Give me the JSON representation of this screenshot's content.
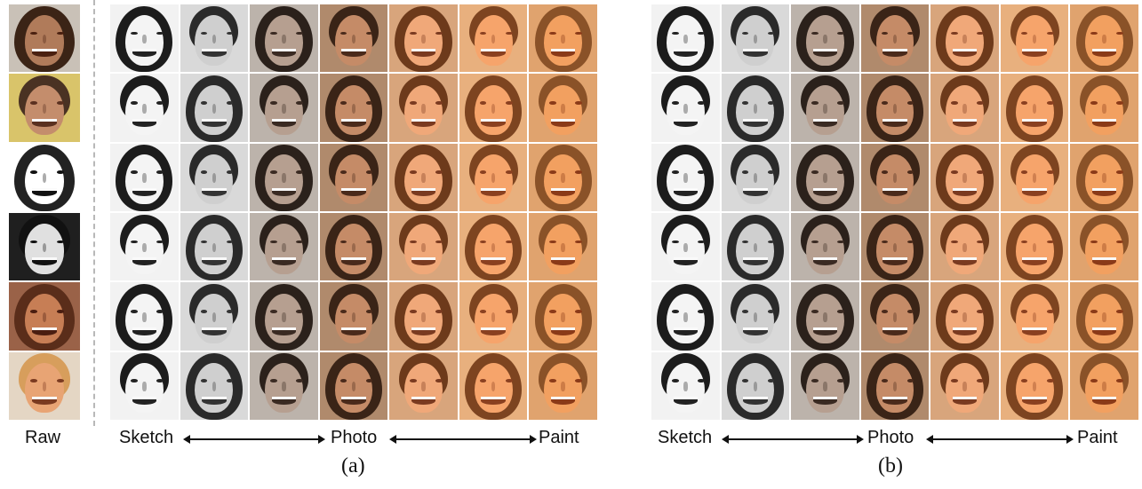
{
  "panel_a": {
    "raw_label": "Raw",
    "axis": {
      "left": "Sketch",
      "center": "Photo",
      "right": "Paint"
    },
    "caption": "(a)",
    "rows": 6,
    "columns": 7
  },
  "panel_b": {
    "axis": {
      "left": "Sketch",
      "center": "Photo",
      "right": "Paint"
    },
    "caption": "(b)",
    "rows": 6,
    "columns": 7
  },
  "style_gradient": [
    {
      "bg": "#f2f2f2",
      "skin": "#f4f4f4",
      "hair": "#1c1c1c",
      "feature": "#222222"
    },
    {
      "bg": "#d9d9d9",
      "skin": "#cfcfcf",
      "hair": "#2a2a2a",
      "feature": "#333333"
    },
    {
      "bg": "#bcb3ab",
      "skin": "#b69f90",
      "hair": "#2b211b",
      "feature": "#3a2a22"
    },
    {
      "bg": "#b08a6c",
      "skin": "#c58b67",
      "hair": "#3a2417",
      "feature": "#4a2a1b"
    },
    {
      "bg": "#d8a57c",
      "skin": "#f0a879",
      "hair": "#6d3a1b",
      "feature": "#7a3a20"
    },
    {
      "bg": "#e8b07e",
      "skin": "#f6a46b",
      "hair": "#7d4420",
      "feature": "#8a4020"
    },
    {
      "bg": "#e0a36e",
      "skin": "#f2a060",
      "hair": "#8a5228",
      "feature": "#8a3a18"
    }
  ],
  "raw_palette": [
    {
      "bg": "#c9c1b7",
      "skin": "#b07b5a",
      "hair": "#3b2416",
      "feature": "#4a2010"
    },
    {
      "bg": "#d9c46a",
      "skin": "#c48d6c",
      "hair": "#4a3223",
      "feature": "#5a3020"
    },
    {
      "bg": "#ffffff",
      "skin": "#ffffff",
      "hair": "#222222",
      "feature": "#111111"
    },
    {
      "bg": "#1f1f1f",
      "skin": "#e0e0e0",
      "hair": "#111111",
      "feature": "#111111"
    },
    {
      "bg": "#9a6248",
      "skin": "#c77e55",
      "hair": "#5a2d1a",
      "feature": "#4a1d10"
    },
    {
      "bg": "#e4d6c4",
      "skin": "#e8a474",
      "hair": "#d79e5c",
      "feature": "#7a3a20"
    }
  ]
}
